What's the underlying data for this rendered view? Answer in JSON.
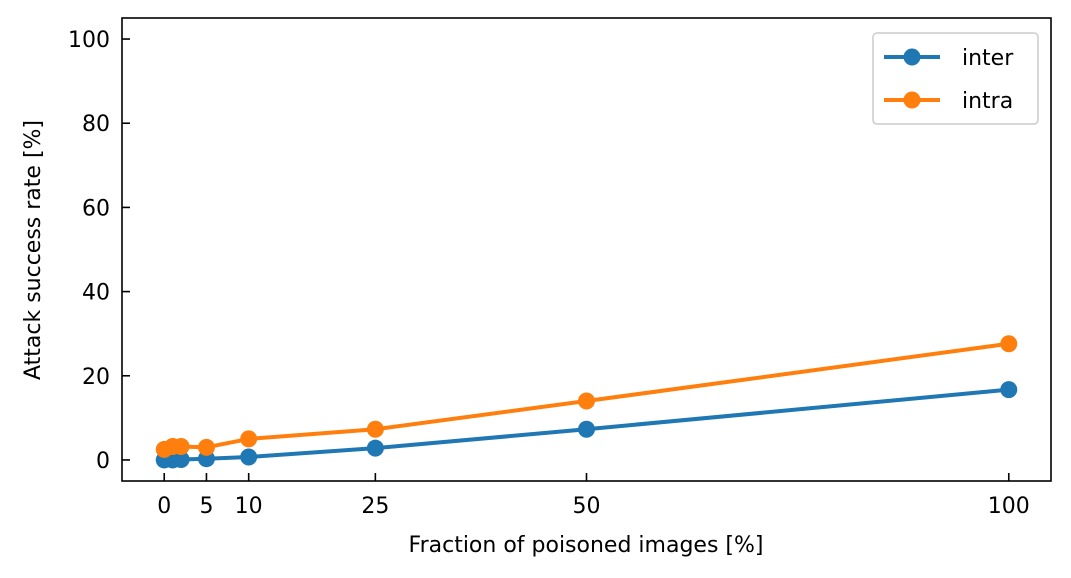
{
  "chart_data": {
    "type": "line",
    "xlabel": "Fraction of poisoned images [%]",
    "ylabel": "Attack success rate [%]",
    "xlim": [
      -5,
      105
    ],
    "ylim": [
      -5,
      105
    ],
    "xticks": [
      0,
      5,
      10,
      25,
      50,
      100
    ],
    "yticks": [
      0,
      20,
      40,
      60,
      80,
      100
    ],
    "ticks_direction": "in",
    "grid": false,
    "legend": "top-right",
    "series": [
      {
        "name": "inter",
        "color": "#1f77b4",
        "x": [
          0,
          1,
          2,
          5,
          10,
          25,
          50,
          100
        ],
        "y": [
          0.0,
          0.0,
          0.1,
          0.3,
          0.7,
          2.8,
          7.3,
          16.7
        ]
      },
      {
        "name": "intra",
        "color": "#ff7f0e",
        "x": [
          0,
          1,
          2,
          5,
          10,
          25,
          50,
          100
        ],
        "y": [
          2.5,
          3.2,
          3.2,
          3.0,
          5.0,
          7.3,
          14.0,
          27.6
        ]
      }
    ]
  }
}
